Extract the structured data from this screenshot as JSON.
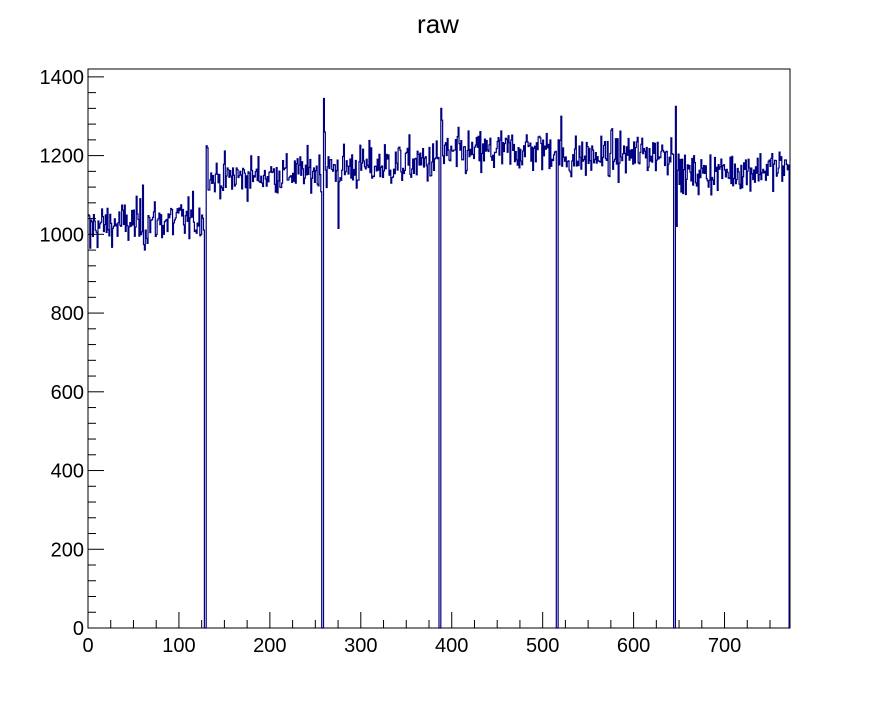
{
  "chart_data": {
    "type": "histogram",
    "title": "raw",
    "xlabel": "",
    "ylabel": "",
    "xlim": [
      0,
      772
    ],
    "ylim": [
      0,
      1420
    ],
    "bin_width": 1,
    "line_color": "#000080",
    "grid": false,
    "legend": "none",
    "x_ticks": [
      0,
      100,
      200,
      300,
      400,
      500,
      600,
      700
    ],
    "y_ticks": [
      0,
      200,
      400,
      600,
      800,
      1000,
      1200,
      1400
    ],
    "x_tick_labels": [
      "0",
      "100",
      "200",
      "300",
      "400",
      "500",
      "600",
      "700"
    ],
    "y_tick_labels": [
      "0",
      "200",
      "400",
      "600",
      "800",
      "1000",
      "1200",
      "1400"
    ],
    "segments": [
      {
        "x_start": 0,
        "x_end": 128,
        "mean": 1030,
        "noise": 40
      },
      {
        "x_start": 128,
        "x_end": 257,
        "mean": 1150,
        "noise": 35
      },
      {
        "x_start": 257,
        "x_end": 386,
        "mean": 1175,
        "noise": 40
      },
      {
        "x_start": 386,
        "x_end": 515,
        "mean": 1210,
        "noise": 40
      },
      {
        "x_start": 515,
        "x_end": 644,
        "mean": 1200,
        "noise": 38
      },
      {
        "x_start": 644,
        "x_end": 772,
        "mean": 1160,
        "noise": 35
      }
    ],
    "zero_bins": [
      128,
      129,
      257,
      258,
      386,
      387,
      515,
      516,
      644,
      645,
      771
    ],
    "peaks": [
      {
        "x": 130,
        "y": 1225
      },
      {
        "x": 131,
        "y": 1220
      },
      {
        "x": 259,
        "y": 1345
      },
      {
        "x": 260,
        "y": 1260
      },
      {
        "x": 388,
        "y": 1320
      },
      {
        "x": 389,
        "y": 1290
      },
      {
        "x": 517,
        "y": 1240
      },
      {
        "x": 646,
        "y": 1325
      },
      {
        "x": 647,
        "y": 1020
      },
      {
        "x": 0,
        "y": 1050
      },
      {
        "x": 2,
        "y": 965
      },
      {
        "x": 62,
        "y": 960
      },
      {
        "x": 60,
        "y": 1125
      },
      {
        "x": 275,
        "y": 1015
      },
      {
        "x": 520,
        "y": 1300
      }
    ]
  }
}
